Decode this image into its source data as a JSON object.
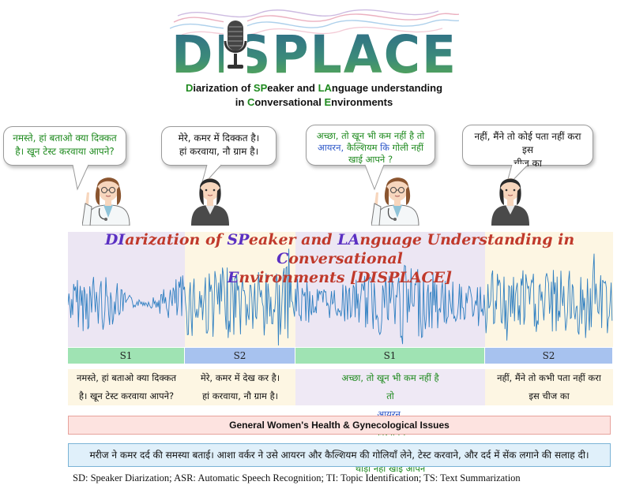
{
  "logo": {
    "text": "DISPLACE"
  },
  "subtitle": {
    "line1": [
      {
        "text": "D",
        "color": "green"
      },
      {
        "text": "iarization of ",
        "color": "black"
      },
      {
        "text": "SP",
        "color": "green"
      },
      {
        "text": "eaker and ",
        "color": "black"
      },
      {
        "text": "LA",
        "color": "green"
      },
      {
        "text": "nguage understanding",
        "color": "black"
      }
    ],
    "line2": [
      {
        "text": "in ",
        "color": "black"
      },
      {
        "text": "C",
        "color": "green"
      },
      {
        "text": "onversational ",
        "color": "black"
      },
      {
        "text": "E",
        "color": "green"
      },
      {
        "text": "nvironments",
        "color": "black"
      }
    ]
  },
  "bubbles": [
    {
      "lines": [
        "नमस्ते, हां बताओ क्या दिक्कत",
        "है। खून टेस्ट करवाया आपने?"
      ],
      "color": "#1e8a1e"
    },
    {
      "lines": [
        "मेरे, कमर में दिक्कत है।",
        "हां करवाया, नौ ग्राम है।"
      ],
      "color": "#111111"
    },
    {
      "lines_rich": [
        [
          {
            "text": "अच्छा, तो खून भी कम नहीं है तो",
            "color": "#1e8a1e"
          }
        ],
        [
          {
            "text": "आयरन, ",
            "color": "#2a55c8"
          },
          {
            "text": "कैल्शियम ",
            "color": "#1e8a1e"
          },
          {
            "text": "कि ",
            "color": "#2a55c8"
          },
          {
            "text": "गोली नहीं",
            "color": "#1e8a1e"
          }
        ],
        [
          {
            "text": "खाई आपने ?",
            "color": "#1e8a1e"
          }
        ]
      ]
    },
    {
      "lines": [
        "नहीं, मैंने तो कोई पता नहीं करा इस",
        "चीज का"
      ],
      "color": "#111111"
    }
  ],
  "waveform_title": {
    "line1": [
      {
        "text": "DI",
        "color": "purple"
      },
      {
        "text": "arization of ",
        "color": "red"
      },
      {
        "text": "SP",
        "color": "purple"
      },
      {
        "text": "eaker and ",
        "color": "red"
      },
      {
        "text": "LA",
        "color": "purple"
      },
      {
        "text": "nguage Understanding in ",
        "color": "red"
      },
      {
        "text": "C",
        "color": "purple"
      },
      {
        "text": "onversational",
        "color": "red"
      }
    ],
    "line2": [
      {
        "text": "E",
        "color": "purple"
      },
      {
        "text": "nvironments [DISPLACE]",
        "color": "red"
      }
    ]
  },
  "speakers": [
    {
      "label": "S1",
      "color": "#9fe3b3"
    },
    {
      "label": "S2",
      "color": "#a7c2ef"
    },
    {
      "label": "S1",
      "color": "#9fe3b3"
    },
    {
      "label": "S2",
      "color": "#a7c2ef"
    }
  ],
  "transcripts": [
    {
      "lines": [
        "नमस्ते, हां बताओ क्या दिक्कत",
        "है। खून टेस्ट करवाया आपने?"
      ],
      "bg": "#fdf6e3"
    },
    {
      "lines": [
        "मेरे, कमर में देख कर है।",
        "हां करवाया, नौ ग्राम है।"
      ],
      "bg": "#fdf6e3"
    },
    {
      "lines_rich": [
        [
          {
            "text": "अच्छा, तो खून भी कम नहीं है",
            "color": "#1e8a1e"
          }
        ],
        [
          {
            "text": "तो ",
            "color": "#1e8a1e"
          },
          {
            "text": "आयरन, ",
            "color": "#2a55c8"
          },
          {
            "text": "कैल्शियम ",
            "color": "#1e8a1e"
          },
          {
            "text": "कि ",
            "color": "#2a55c8"
          },
          {
            "text": "थोड़ी नहीं खाई आपने",
            "color": "#1e8a1e"
          }
        ]
      ],
      "bg": "#efe9f5"
    },
    {
      "lines": [
        "नहीं, मैंने तो कभी पता नहीं करा",
        "इस चीज का"
      ],
      "bg": "#fdf6e3"
    }
  ],
  "topic": "General Women's Health & Gynecological Issues",
  "summary": "मरीज ने कमर दर्द की समस्या बताई। आशा वर्कर ने उसे आयरन और कैल्शियम की गोलियाँ लेने, टेस्ट करवाने, और दर्द में सेंक लगाने की सलाह दी।",
  "footer": "SD: Speaker Diarization; ASR: Automatic Speech Recognition; TI: Topic Identification; TS: Text Summarization"
}
